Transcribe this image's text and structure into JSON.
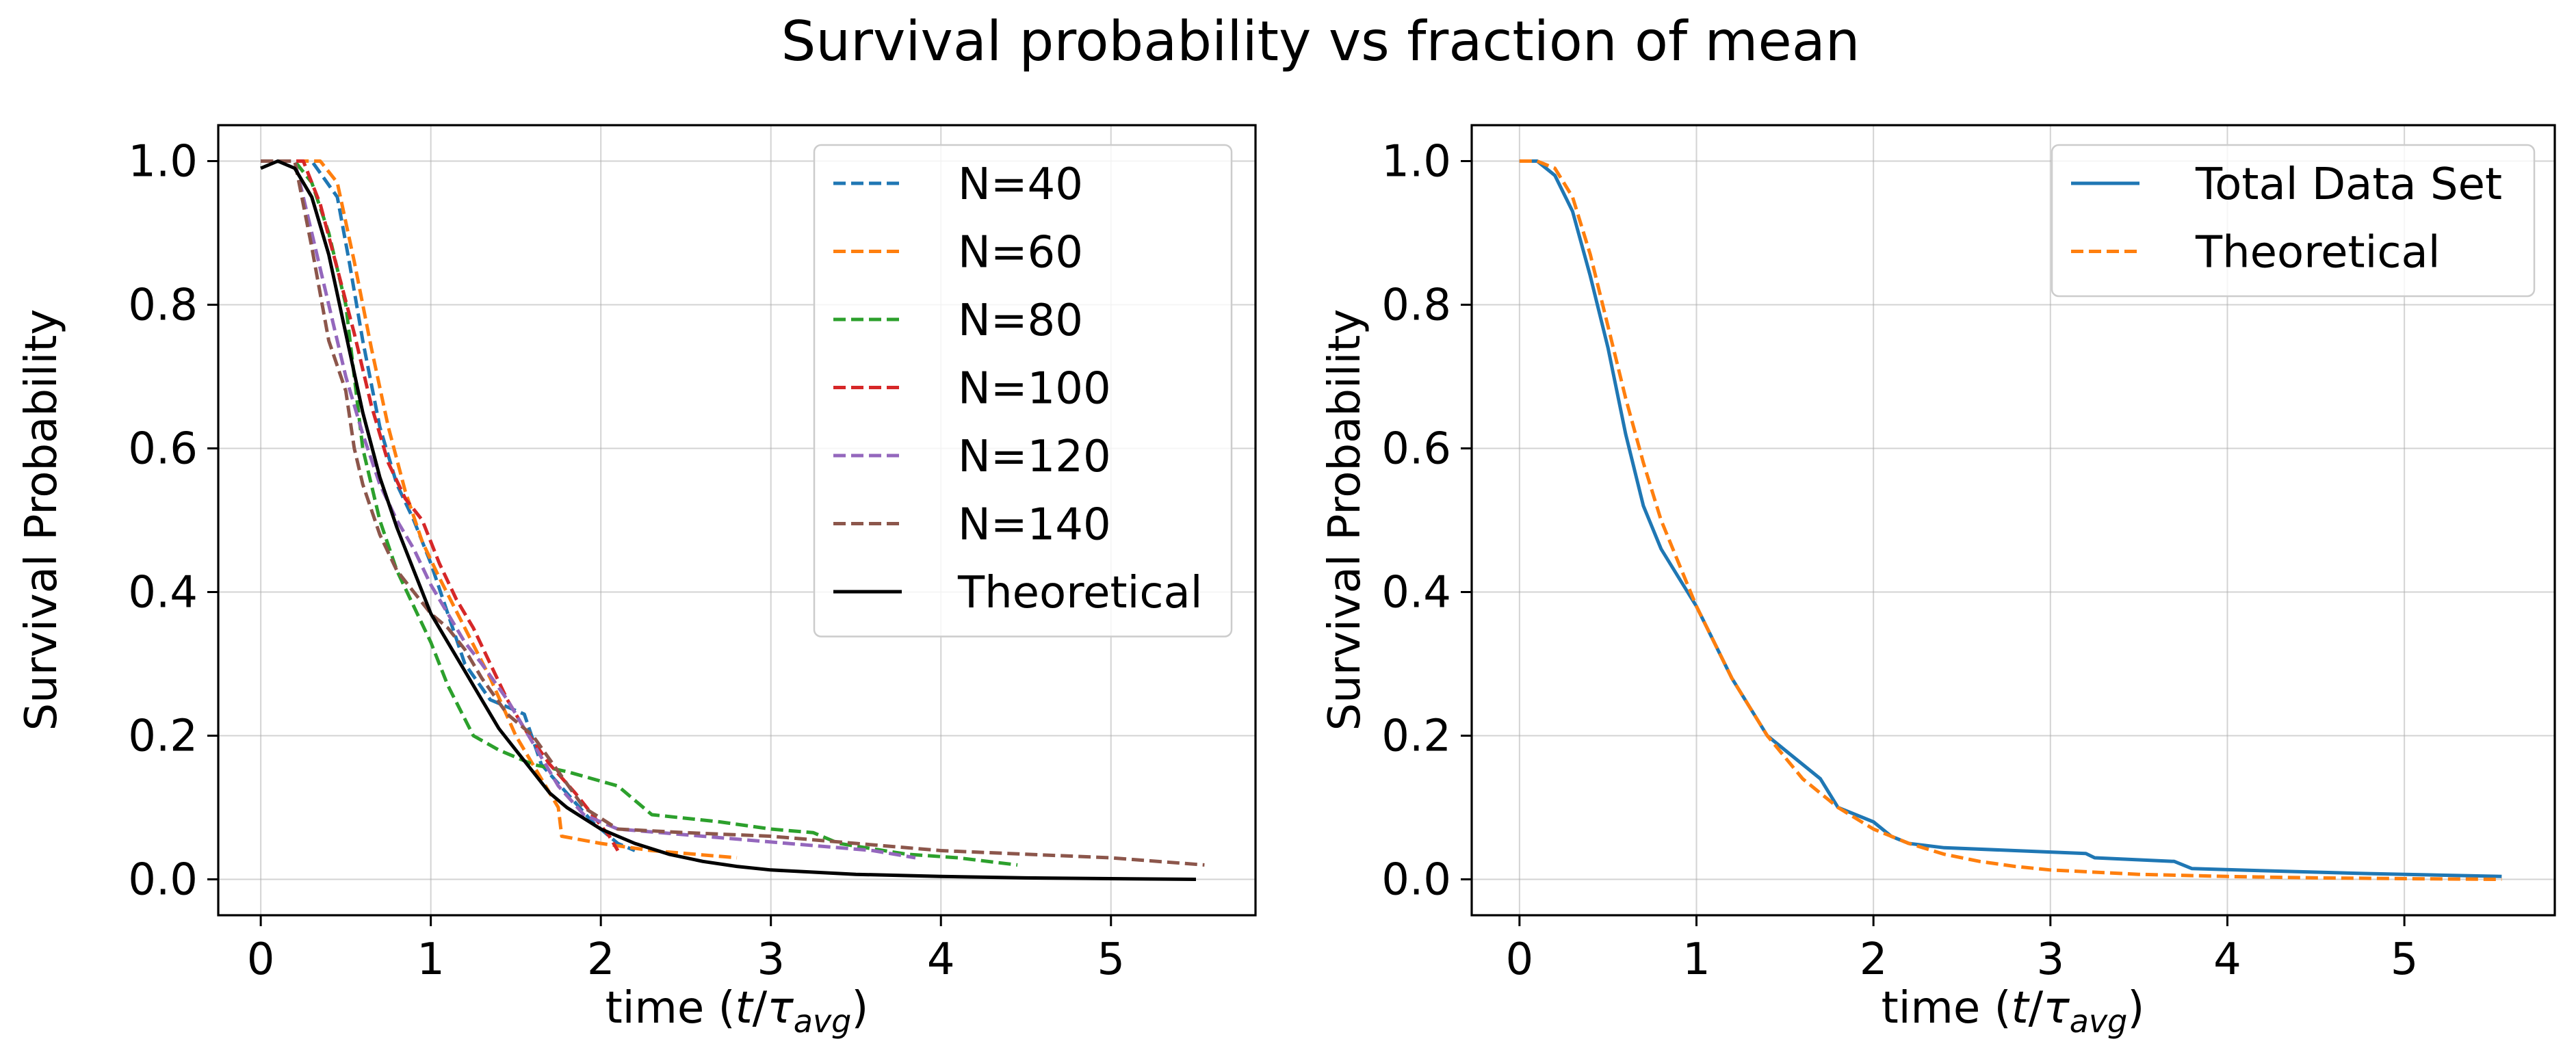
{
  "figure": {
    "title": "Survival probability vs fraction of mean"
  },
  "chart_data": [
    {
      "type": "line",
      "xlabel": "time (t/τavg)",
      "ylabel": "Survival Probability",
      "xlim": [
        -0.25,
        5.85
      ],
      "ylim": [
        -0.05,
        1.05
      ],
      "xticks": [
        "0",
        "1",
        "2",
        "3",
        "4",
        "5"
      ],
      "yticks": [
        "0.0",
        "0.2",
        "0.4",
        "0.6",
        "0.8",
        "1.0"
      ],
      "grid": true,
      "legend_position": "top-right",
      "series": [
        {
          "name": "N=40",
          "color": "#1f77b4",
          "style": "dashed",
          "x": [
            0.0,
            0.3,
            0.45,
            0.52,
            0.6,
            0.7,
            0.8,
            0.9,
            1.0,
            1.1,
            1.2,
            1.35,
            1.55,
            1.65,
            1.8,
            1.95,
            2.1,
            2.2
          ],
          "y": [
            1.0,
            1.0,
            0.95,
            0.86,
            0.75,
            0.63,
            0.55,
            0.5,
            0.44,
            0.37,
            0.3,
            0.25,
            0.23,
            0.16,
            0.12,
            0.08,
            0.05,
            0.04
          ]
        },
        {
          "name": "N=60",
          "color": "#ff7f0e",
          "style": "dashed",
          "x": [
            0.0,
            0.35,
            0.45,
            0.55,
            0.65,
            0.75,
            0.85,
            0.95,
            1.05,
            1.2,
            1.35,
            1.5,
            1.65,
            1.75,
            1.77,
            2.0,
            2.3,
            2.8
          ],
          "y": [
            1.0,
            1.0,
            0.97,
            0.86,
            0.74,
            0.63,
            0.54,
            0.47,
            0.42,
            0.35,
            0.28,
            0.2,
            0.14,
            0.1,
            0.06,
            0.05,
            0.04,
            0.03
          ]
        },
        {
          "name": "N=80",
          "color": "#2ca02c",
          "style": "dashed",
          "x": [
            0.0,
            0.2,
            0.3,
            0.4,
            0.5,
            0.6,
            0.7,
            0.8,
            0.9,
            1.0,
            1.1,
            1.25,
            1.4,
            1.6,
            1.8,
            2.1,
            2.3,
            2.7,
            3.0,
            3.25,
            3.4,
            3.8,
            4.1,
            4.45
          ],
          "y": [
            1.0,
            1.0,
            0.97,
            0.9,
            0.8,
            0.6,
            0.5,
            0.43,
            0.38,
            0.33,
            0.27,
            0.2,
            0.18,
            0.16,
            0.15,
            0.13,
            0.09,
            0.08,
            0.07,
            0.065,
            0.05,
            0.035,
            0.03,
            0.02
          ]
        },
        {
          "name": "N=100",
          "color": "#d62728",
          "style": "dashed",
          "x": [
            0.0,
            0.25,
            0.35,
            0.45,
            0.55,
            0.65,
            0.75,
            0.85,
            0.95,
            1.05,
            1.15,
            1.25,
            1.35,
            1.45,
            1.55,
            1.7,
            1.85,
            1.95,
            2.05,
            2.1
          ],
          "y": [
            1.0,
            1.0,
            0.94,
            0.85,
            0.76,
            0.66,
            0.58,
            0.53,
            0.5,
            0.44,
            0.39,
            0.35,
            0.3,
            0.25,
            0.21,
            0.16,
            0.12,
            0.09,
            0.06,
            0.04
          ]
        },
        {
          "name": "N=120",
          "color": "#9467bd",
          "style": "dashed",
          "x": [
            0.0,
            0.2,
            0.3,
            0.4,
            0.5,
            0.6,
            0.7,
            0.8,
            0.9,
            1.0,
            1.1,
            1.2,
            1.3,
            1.45,
            1.6,
            1.75,
            1.9,
            2.1,
            2.6,
            3.1,
            3.6,
            3.85
          ],
          "y": [
            1.0,
            1.0,
            0.9,
            0.8,
            0.7,
            0.62,
            0.55,
            0.5,
            0.46,
            0.41,
            0.37,
            0.33,
            0.3,
            0.25,
            0.19,
            0.13,
            0.09,
            0.07,
            0.06,
            0.05,
            0.04,
            0.03
          ]
        },
        {
          "name": "N=140",
          "color": "#8c564b",
          "style": "dashed",
          "x": [
            0.0,
            0.2,
            0.3,
            0.4,
            0.5,
            0.55,
            0.6,
            0.7,
            0.8,
            0.9,
            1.0,
            1.1,
            1.2,
            1.3,
            1.45,
            1.6,
            1.75,
            1.9,
            2.1,
            2.5,
            3.0,
            3.5,
            4.0,
            4.5,
            5.0,
            5.55
          ],
          "y": [
            1.0,
            1.0,
            0.88,
            0.75,
            0.68,
            0.6,
            0.55,
            0.48,
            0.43,
            0.4,
            0.37,
            0.35,
            0.32,
            0.28,
            0.23,
            0.2,
            0.15,
            0.1,
            0.07,
            0.065,
            0.06,
            0.05,
            0.04,
            0.035,
            0.03,
            0.02
          ]
        },
        {
          "name": "Theoretical",
          "color": "#000000",
          "style": "solid",
          "x": [
            0.0,
            0.1,
            0.2,
            0.3,
            0.4,
            0.5,
            0.6,
            0.7,
            0.8,
            0.9,
            1.0,
            1.1,
            1.2,
            1.3,
            1.4,
            1.5,
            1.6,
            1.7,
            1.8,
            1.9,
            2.0,
            2.2,
            2.4,
            2.6,
            2.8,
            3.0,
            3.5,
            4.0,
            4.5,
            5.0,
            5.5
          ],
          "y": [
            0.99,
            1.0,
            0.99,
            0.95,
            0.87,
            0.76,
            0.65,
            0.56,
            0.49,
            0.43,
            0.37,
            0.33,
            0.29,
            0.25,
            0.21,
            0.18,
            0.15,
            0.12,
            0.1,
            0.085,
            0.07,
            0.05,
            0.035,
            0.025,
            0.018,
            0.013,
            0.007,
            0.004,
            0.002,
            0.001,
            0.0
          ]
        }
      ]
    },
    {
      "type": "line",
      "xlabel": "time (t/τavg)",
      "ylabel": "Survival Probability",
      "xlim": [
        -0.27,
        5.85
      ],
      "ylim": [
        -0.05,
        1.05
      ],
      "xticks": [
        "0",
        "1",
        "2",
        "3",
        "4",
        "5"
      ],
      "yticks": [
        "0.0",
        "0.2",
        "0.4",
        "0.6",
        "0.8",
        "1.0"
      ],
      "grid": true,
      "legend_position": "top-right",
      "series": [
        {
          "name": "Total Data Set",
          "color": "#1f77b4",
          "style": "solid",
          "x": [
            0.0,
            0.1,
            0.2,
            0.3,
            0.4,
            0.5,
            0.6,
            0.7,
            0.8,
            0.9,
            1.0,
            1.1,
            1.2,
            1.3,
            1.4,
            1.5,
            1.6,
            1.7,
            1.8,
            1.9,
            2.0,
            2.1,
            2.2,
            2.4,
            2.8,
            3.2,
            3.25,
            3.7,
            3.8,
            4.2,
            4.8,
            5.55
          ],
          "y": [
            1.0,
            1.0,
            0.98,
            0.93,
            0.84,
            0.74,
            0.62,
            0.52,
            0.46,
            0.42,
            0.38,
            0.33,
            0.28,
            0.24,
            0.2,
            0.18,
            0.16,
            0.14,
            0.1,
            0.09,
            0.08,
            0.06,
            0.05,
            0.044,
            0.04,
            0.036,
            0.03,
            0.025,
            0.015,
            0.012,
            0.008,
            0.004
          ]
        },
        {
          "name": "Theoretical",
          "color": "#ff7f0e",
          "style": "dashed",
          "x": [
            0.0,
            0.1,
            0.2,
            0.3,
            0.4,
            0.5,
            0.6,
            0.7,
            0.8,
            0.9,
            1.0,
            1.1,
            1.2,
            1.3,
            1.4,
            1.5,
            1.6,
            1.7,
            1.8,
            1.9,
            2.0,
            2.2,
            2.4,
            2.6,
            2.8,
            3.0,
            3.5,
            4.0,
            4.5,
            5.0,
            5.55
          ],
          "y": [
            1.0,
            1.0,
            0.99,
            0.95,
            0.87,
            0.77,
            0.67,
            0.58,
            0.5,
            0.44,
            0.38,
            0.33,
            0.28,
            0.24,
            0.2,
            0.17,
            0.14,
            0.12,
            0.1,
            0.085,
            0.07,
            0.05,
            0.035,
            0.025,
            0.018,
            0.013,
            0.007,
            0.004,
            0.002,
            0.001,
            0.0
          ]
        }
      ]
    }
  ]
}
